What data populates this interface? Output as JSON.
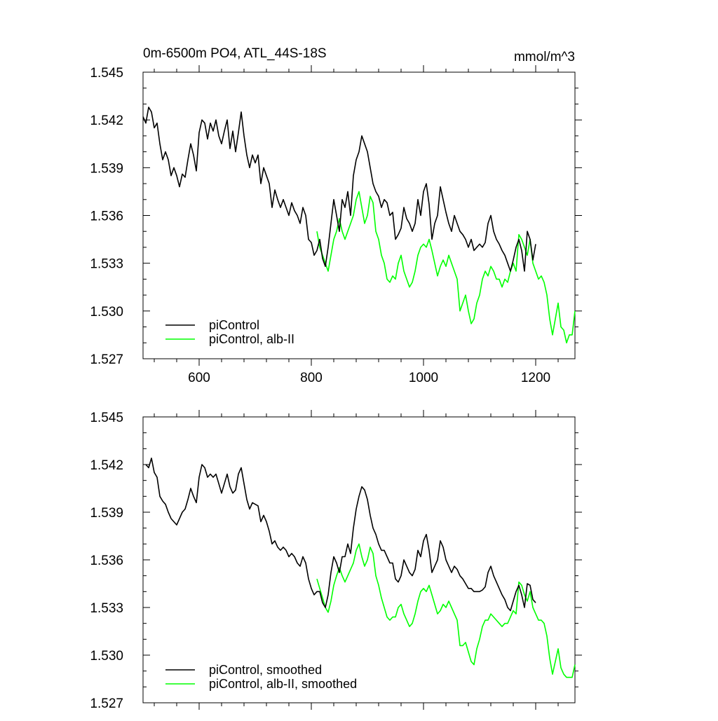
{
  "chart_data": [
    {
      "type": "line",
      "title": "0m-6500m PO4, ATL_44S-18S",
      "units": "mmol/m^3",
      "xlim": [
        500,
        1270
      ],
      "ylim": [
        1.527,
        1.545
      ],
      "x_ticks": [
        "600",
        "800",
        "1000",
        "1200"
      ],
      "y_ticks": [
        "1.527",
        "1.530",
        "1.533",
        "1.536",
        "1.539",
        "1.542",
        "1.545"
      ],
      "series": [
        {
          "name": "piControl",
          "color": "#000000",
          "x": [
            500,
            505,
            510,
            515,
            520,
            525,
            530,
            535,
            540,
            545,
            550,
            555,
            560,
            565,
            570,
            575,
            580,
            585,
            590,
            595,
            600,
            605,
            610,
            615,
            620,
            625,
            630,
            635,
            640,
            645,
            650,
            655,
            660,
            665,
            670,
            675,
            680,
            685,
            690,
            695,
            700,
            705,
            710,
            715,
            720,
            725,
            730,
            735,
            740,
            745,
            750,
            755,
            760,
            765,
            770,
            775,
            780,
            785,
            790,
            795,
            800,
            805,
            810,
            815,
            820,
            825,
            830,
            835,
            840,
            845,
            850,
            855,
            860,
            865,
            870,
            875,
            880,
            885,
            890,
            895,
            900,
            905,
            910,
            915,
            920,
            925,
            930,
            935,
            940,
            945,
            950,
            955,
            960,
            965,
            970,
            975,
            980,
            985,
            990,
            995,
            1000,
            1005,
            1010,
            1015,
            1020,
            1025,
            1030,
            1035,
            1040,
            1045,
            1050,
            1055,
            1060,
            1065,
            1070,
            1075,
            1080,
            1085,
            1090,
            1095,
            1100,
            1105,
            1110,
            1115,
            1120,
            1125,
            1130,
            1135,
            1140,
            1145,
            1150,
            1155,
            1160,
            1165,
            1170,
            1175,
            1180,
            1185,
            1190,
            1195,
            1200
          ],
          "values": [
            1.5422,
            1.5418,
            1.5428,
            1.5425,
            1.5415,
            1.5418,
            1.5405,
            1.5395,
            1.54,
            1.5395,
            1.5385,
            1.539,
            1.5385,
            1.5378,
            1.5386,
            1.5384,
            1.5395,
            1.5405,
            1.5398,
            1.5388,
            1.5412,
            1.542,
            1.5418,
            1.5408,
            1.5418,
            1.5413,
            1.542,
            1.541,
            1.5405,
            1.5413,
            1.542,
            1.5402,
            1.5413,
            1.54,
            1.5412,
            1.5425,
            1.541,
            1.5398,
            1.539,
            1.5398,
            1.5393,
            1.5398,
            1.538,
            1.539,
            1.5385,
            1.538,
            1.5365,
            1.5376,
            1.537,
            1.5365,
            1.537,
            1.5365,
            1.536,
            1.5368,
            1.5363,
            1.536,
            1.5355,
            1.5365,
            1.536,
            1.5345,
            1.5343,
            1.5335,
            1.5338,
            1.5345,
            1.5333,
            1.5328,
            1.534,
            1.5355,
            1.537,
            1.536,
            1.535,
            1.537,
            1.5365,
            1.5375,
            1.536,
            1.5385,
            1.5395,
            1.54,
            1.541,
            1.5405,
            1.54,
            1.539,
            1.538,
            1.5375,
            1.5372,
            1.5365,
            1.537,
            1.5368,
            1.536,
            1.5362,
            1.5345,
            1.5348,
            1.5352,
            1.5365,
            1.5358,
            1.5355,
            1.535,
            1.5355,
            1.537,
            1.536,
            1.5375,
            1.538,
            1.5367,
            1.5345,
            1.5355,
            1.536,
            1.5378,
            1.537,
            1.5362,
            1.5355,
            1.535,
            1.536,
            1.5355,
            1.535,
            1.5348,
            1.5345,
            1.534,
            1.5345,
            1.5338,
            1.534,
            1.5342,
            1.534,
            1.5343,
            1.5355,
            1.536,
            1.535,
            1.5345,
            1.5342,
            1.5338,
            1.5335,
            1.533,
            1.5325,
            1.5332,
            1.534,
            1.5345,
            1.5338,
            1.5325,
            1.535,
            1.5345,
            1.5332,
            1.5342
          ]
        },
        {
          "name": "piControl, alb-II",
          "color": "#00ff00",
          "x": [
            810,
            815,
            820,
            825,
            830,
            835,
            840,
            845,
            850,
            855,
            860,
            865,
            870,
            875,
            880,
            885,
            890,
            895,
            900,
            905,
            910,
            915,
            920,
            925,
            930,
            935,
            940,
            945,
            950,
            955,
            960,
            965,
            970,
            975,
            980,
            985,
            990,
            995,
            1000,
            1005,
            1010,
            1015,
            1020,
            1025,
            1030,
            1035,
            1040,
            1045,
            1050,
            1055,
            1060,
            1065,
            1070,
            1075,
            1080,
            1085,
            1090,
            1095,
            1100,
            1105,
            1110,
            1115,
            1120,
            1125,
            1130,
            1135,
            1140,
            1145,
            1150,
            1155,
            1160,
            1165,
            1170,
            1175,
            1180,
            1185,
            1190,
            1195,
            1200,
            1205,
            1210,
            1215,
            1220,
            1225,
            1230,
            1235,
            1240,
            1245,
            1250,
            1255,
            1260,
            1265,
            1270
          ],
          "values": [
            1.535,
            1.534,
            1.5335,
            1.533,
            1.5325,
            1.5335,
            1.5345,
            1.535,
            1.5358,
            1.535,
            1.5345,
            1.535,
            1.5355,
            1.536,
            1.537,
            1.5375,
            1.5365,
            1.5355,
            1.536,
            1.5372,
            1.5368,
            1.535,
            1.5345,
            1.5335,
            1.533,
            1.532,
            1.5318,
            1.5322,
            1.532,
            1.533,
            1.5335,
            1.5325,
            1.532,
            1.5315,
            1.5318,
            1.5325,
            1.5335,
            1.534,
            1.5342,
            1.534,
            1.5345,
            1.5338,
            1.533,
            1.5322,
            1.5328,
            1.5332,
            1.5328,
            1.5335,
            1.533,
            1.5325,
            1.532,
            1.53,
            1.5305,
            1.531,
            1.53,
            1.5292,
            1.5295,
            1.5305,
            1.531,
            1.532,
            1.5325,
            1.5322,
            1.5328,
            1.5325,
            1.532,
            1.532,
            1.5315,
            1.532,
            1.5318,
            1.5325,
            1.533,
            1.5325,
            1.5348,
            1.5345,
            1.534,
            1.5335,
            1.5345,
            1.533,
            1.5325,
            1.532,
            1.5322,
            1.5318,
            1.531,
            1.5295,
            1.5285,
            1.5295,
            1.5305,
            1.529,
            1.5288,
            1.528,
            1.5285,
            1.5285,
            1.53
          ]
        }
      ],
      "legend": {
        "placement": "bottom-left"
      }
    },
    {
      "type": "line",
      "xlim": [
        500,
        1270
      ],
      "ylim": [
        1.527,
        1.545
      ],
      "y_ticks": [
        "1.527",
        "1.530",
        "1.533",
        "1.536",
        "1.539",
        "1.542",
        "1.545"
      ],
      "series": [
        {
          "name": "piControl, smoothed",
          "color": "#000000",
          "x": [
            505,
            510,
            515,
            520,
            525,
            530,
            535,
            540,
            545,
            550,
            555,
            560,
            565,
            570,
            575,
            580,
            585,
            590,
            595,
            600,
            605,
            610,
            615,
            620,
            625,
            630,
            635,
            640,
            645,
            650,
            655,
            660,
            665,
            670,
            675,
            680,
            685,
            690,
            695,
            700,
            705,
            710,
            715,
            720,
            725,
            730,
            735,
            740,
            745,
            750,
            755,
            760,
            765,
            770,
            775,
            780,
            785,
            790,
            795,
            800,
            805,
            810,
            815,
            820,
            825,
            830,
            835,
            840,
            845,
            850,
            855,
            860,
            865,
            870,
            875,
            880,
            885,
            890,
            895,
            900,
            905,
            910,
            915,
            920,
            925,
            930,
            935,
            940,
            945,
            950,
            955,
            960,
            965,
            970,
            975,
            980,
            985,
            990,
            995,
            1000,
            1005,
            1010,
            1015,
            1020,
            1025,
            1030,
            1035,
            1040,
            1045,
            1050,
            1055,
            1060,
            1065,
            1070,
            1075,
            1080,
            1085,
            1090,
            1095,
            1100,
            1105,
            1110,
            1115,
            1120,
            1125,
            1130,
            1135,
            1140,
            1145,
            1150,
            1155,
            1160,
            1165,
            1170,
            1175,
            1180,
            1185,
            1190,
            1195,
            1200
          ],
          "values": [
            1.542,
            1.5418,
            1.5424,
            1.5415,
            1.5412,
            1.54,
            1.5397,
            1.5395,
            1.539,
            1.5386,
            1.5384,
            1.5382,
            1.5386,
            1.539,
            1.5392,
            1.5398,
            1.5405,
            1.54,
            1.5396,
            1.5412,
            1.542,
            1.5418,
            1.5412,
            1.5414,
            1.5412,
            1.5414,
            1.5408,
            1.5402,
            1.5408,
            1.5414,
            1.5406,
            1.5402,
            1.5404,
            1.5414,
            1.5418,
            1.5408,
            1.5398,
            1.5392,
            1.5396,
            1.5395,
            1.5394,
            1.5384,
            1.5388,
            1.5384,
            1.5378,
            1.537,
            1.5372,
            1.5368,
            1.5366,
            1.5368,
            1.5366,
            1.5362,
            1.5364,
            1.5362,
            1.5358,
            1.5356,
            1.5362,
            1.5358,
            1.5348,
            1.5342,
            1.5338,
            1.534,
            1.534,
            1.5333,
            1.533,
            1.5338,
            1.5352,
            1.5362,
            1.5358,
            1.5352,
            1.5362,
            1.5362,
            1.537,
            1.5364,
            1.538,
            1.5392,
            1.54,
            1.5406,
            1.5404,
            1.5398,
            1.5388,
            1.538,
            1.5376,
            1.537,
            1.5366,
            1.5366,
            1.5362,
            1.5358,
            1.5358,
            1.5348,
            1.5346,
            1.535,
            1.536,
            1.5356,
            1.5352,
            1.535,
            1.5354,
            1.5366,
            1.5362,
            1.5372,
            1.5376,
            1.5366,
            1.5352,
            1.5356,
            1.536,
            1.5372,
            1.5368,
            1.536,
            1.5356,
            1.5352,
            1.5356,
            1.5354,
            1.535,
            1.5348,
            1.5345,
            1.5342,
            1.5342,
            1.534,
            1.534,
            1.534,
            1.5341,
            1.5343,
            1.5352,
            1.5356,
            1.535,
            1.5346,
            1.5342,
            1.5338,
            1.5335,
            1.533,
            1.5328,
            1.5334,
            1.534,
            1.5344,
            1.5338,
            1.533,
            1.5345,
            1.5344,
            1.5335,
            1.5333
          ]
        },
        {
          "name": "piControl, alb-II, smoothed",
          "color": "#00ff00",
          "x": [
            810,
            815,
            820,
            825,
            830,
            835,
            840,
            845,
            850,
            855,
            860,
            865,
            870,
            875,
            880,
            885,
            890,
            895,
            900,
            905,
            910,
            915,
            920,
            925,
            930,
            935,
            940,
            945,
            950,
            955,
            960,
            965,
            970,
            975,
            980,
            985,
            990,
            995,
            1000,
            1005,
            1010,
            1015,
            1020,
            1025,
            1030,
            1035,
            1040,
            1045,
            1050,
            1055,
            1060,
            1065,
            1070,
            1075,
            1080,
            1085,
            1090,
            1095,
            1100,
            1105,
            1110,
            1115,
            1120,
            1125,
            1130,
            1135,
            1140,
            1145,
            1150,
            1155,
            1160,
            1165,
            1170,
            1175,
            1180,
            1185,
            1190,
            1195,
            1200,
            1205,
            1210,
            1215,
            1220,
            1225,
            1230,
            1235,
            1240,
            1245,
            1250,
            1255,
            1260,
            1265,
            1270
          ],
          "values": [
            1.5348,
            1.5342,
            1.5336,
            1.533,
            1.5327,
            1.5334,
            1.5344,
            1.535,
            1.5355,
            1.535,
            1.5346,
            1.535,
            1.5354,
            1.5358,
            1.5366,
            1.537,
            1.5362,
            1.5356,
            1.536,
            1.5368,
            1.5364,
            1.535,
            1.5344,
            1.5336,
            1.533,
            1.5324,
            1.5322,
            1.5324,
            1.5324,
            1.533,
            1.5332,
            1.5326,
            1.5322,
            1.5318,
            1.532,
            1.5326,
            1.5334,
            1.534,
            1.5342,
            1.534,
            1.5344,
            1.5338,
            1.5332,
            1.5326,
            1.5328,
            1.5332,
            1.533,
            1.5334,
            1.533,
            1.5326,
            1.5322,
            1.5306,
            1.5306,
            1.5308,
            1.5302,
            1.5296,
            1.5294,
            1.5304,
            1.531,
            1.5318,
            1.5322,
            1.5322,
            1.5326,
            1.5324,
            1.5322,
            1.532,
            1.5318,
            1.532,
            1.532,
            1.5324,
            1.5328,
            1.5326,
            1.5346,
            1.5344,
            1.5338,
            1.5334,
            1.534,
            1.533,
            1.5326,
            1.5322,
            1.5322,
            1.532,
            1.5312,
            1.5298,
            1.5288,
            1.5296,
            1.5304,
            1.5292,
            1.5288,
            1.5286,
            1.5286,
            1.5286,
            1.5294
          ]
        }
      ],
      "legend": {
        "placement": "bottom-left"
      }
    }
  ]
}
